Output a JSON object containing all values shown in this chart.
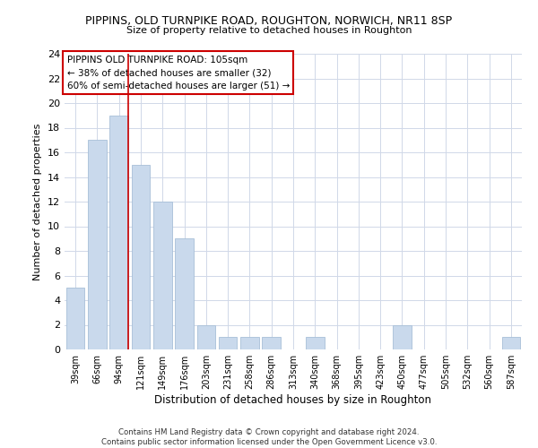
{
  "title": "PIPPINS, OLD TURNPIKE ROAD, ROUGHTON, NORWICH, NR11 8SP",
  "subtitle": "Size of property relative to detached houses in Roughton",
  "xlabel": "Distribution of detached houses by size in Roughton",
  "ylabel": "Number of detached properties",
  "bar_color": "#c9d9ec",
  "bar_edge_color": "#a8bfd8",
  "categories": [
    "39sqm",
    "66sqm",
    "94sqm",
    "121sqm",
    "149sqm",
    "176sqm",
    "203sqm",
    "231sqm",
    "258sqm",
    "286sqm",
    "313sqm",
    "340sqm",
    "368sqm",
    "395sqm",
    "423sqm",
    "450sqm",
    "477sqm",
    "505sqm",
    "532sqm",
    "560sqm",
    "587sqm"
  ],
  "values": [
    5,
    17,
    19,
    15,
    12,
    9,
    2,
    1,
    1,
    1,
    0,
    1,
    0,
    0,
    0,
    2,
    0,
    0,
    0,
    0,
    1
  ],
  "ylim": [
    0,
    24
  ],
  "yticks": [
    0,
    2,
    4,
    6,
    8,
    10,
    12,
    14,
    16,
    18,
    20,
    22,
    24
  ],
  "vline_color": "#cc0000",
  "vline_x_index": 2.425,
  "annotation_text": "PIPPINS OLD TURNPIKE ROAD: 105sqm\n← 38% of detached houses are smaller (32)\n60% of semi-detached houses are larger (51) →",
  "annotation_box_color": "#ffffff",
  "annotation_box_edge_color": "#cc0000",
  "footer": "Contains HM Land Registry data © Crown copyright and database right 2024.\nContains public sector information licensed under the Open Government Licence v3.0.",
  "bg_color": "#ffffff",
  "grid_color": "#d0d8e8"
}
